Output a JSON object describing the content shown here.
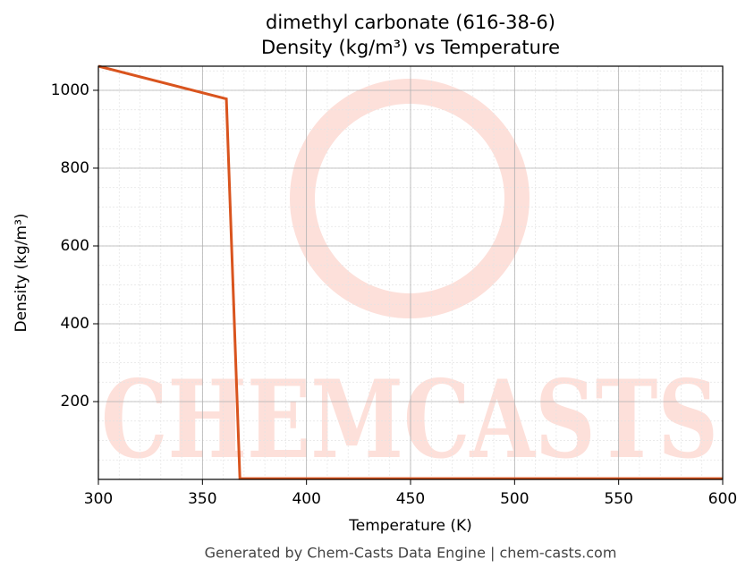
{
  "chart_data": {
    "type": "line",
    "title": "dimethyl carbonate (616-38-6)",
    "subtitle": "Density (kg/m³) vs Temperature",
    "x_label": "Temperature (K)",
    "y_label": "Density (kg/m³)",
    "footer": "Generated by Chem-Casts Data Engine | chem-casts.com",
    "watermark": "CHEMCASTS",
    "x": [
      300,
      361.5,
      368,
      600
    ],
    "series": [
      {
        "name": "Density",
        "color": "#d9541e",
        "values": [
          1062,
          978,
          2,
          2
        ]
      }
    ],
    "xlim": [
      300,
      600
    ],
    "xticks": [
      300,
      350,
      400,
      450,
      500,
      550,
      600
    ],
    "ylim": [
      0,
      1062
    ],
    "yticks": [
      200,
      400,
      600,
      800,
      1000
    ],
    "grid": true,
    "minor_grid": true
  }
}
